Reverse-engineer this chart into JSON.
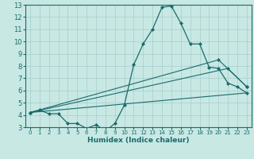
{
  "xlabel": "Humidex (Indice chaleur)",
  "xlim": [
    -0.5,
    23.5
  ],
  "ylim": [
    3,
    13
  ],
  "xticks": [
    0,
    1,
    2,
    3,
    4,
    5,
    6,
    7,
    8,
    9,
    10,
    11,
    12,
    13,
    14,
    15,
    16,
    17,
    18,
    19,
    20,
    21,
    22,
    23
  ],
  "yticks": [
    3,
    4,
    5,
    6,
    7,
    8,
    9,
    10,
    11,
    12,
    13
  ],
  "bg_color": "#c8e8e4",
  "line_color": "#1a6b6b",
  "grid_color": "#a8cccc",
  "series_main": {
    "x": [
      0,
      1,
      2,
      3,
      4,
      5,
      6,
      7,
      8,
      9,
      10,
      11,
      12,
      13,
      14,
      15,
      16,
      17,
      18,
      19,
      20,
      21,
      22,
      23
    ],
    "y": [
      4.2,
      4.4,
      4.1,
      4.1,
      3.3,
      3.3,
      2.9,
      3.2,
      2.7,
      3.3,
      4.8,
      8.1,
      9.8,
      11.0,
      12.8,
      12.9,
      11.5,
      9.8,
      9.8,
      7.9,
      7.8,
      6.6,
      6.3,
      5.8
    ]
  },
  "series_line1": {
    "x": [
      0,
      23
    ],
    "y": [
      4.2,
      5.8
    ]
  },
  "series_line2": {
    "x": [
      0,
      21,
      23
    ],
    "y": [
      4.2,
      7.8,
      6.3
    ]
  },
  "series_line3": {
    "x": [
      0,
      20,
      23
    ],
    "y": [
      4.2,
      8.5,
      6.3
    ]
  }
}
